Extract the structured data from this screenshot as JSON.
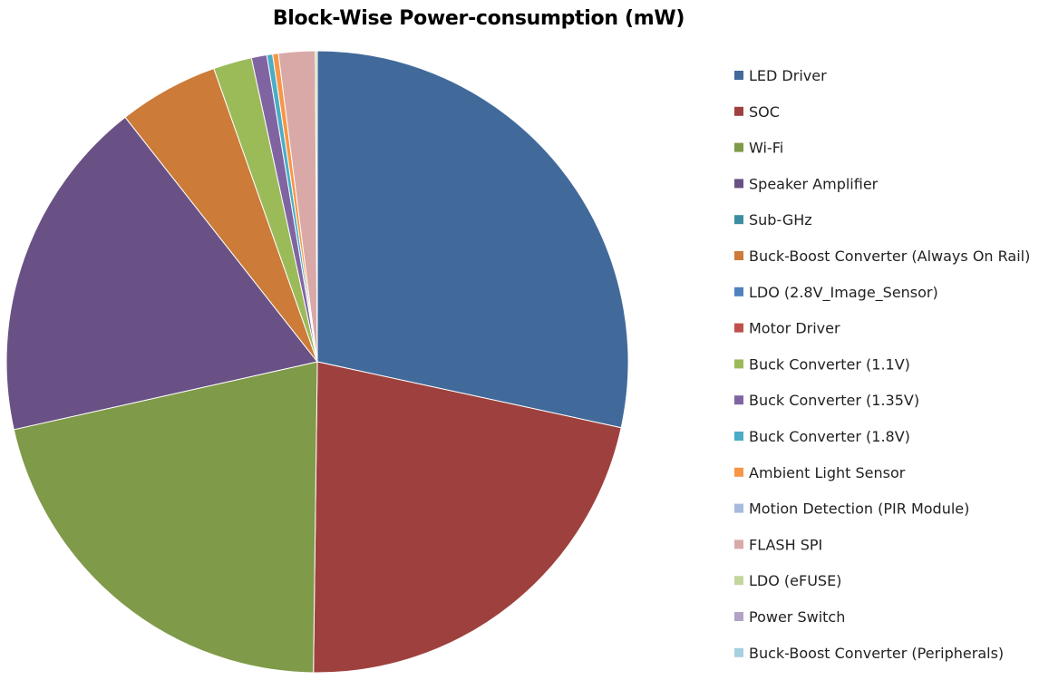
{
  "chart_data": {
    "type": "pie",
    "title": "Block-Wise Power-consumption (mW)",
    "unit_note_values_as_percent_share": true,
    "legend_position": "right",
    "categories": [
      "LED Driver",
      "SOC",
      "Wi-Fi",
      "Speaker Amplifier",
      "Sub-GHz",
      "Buck-Boost Converter (Always On Rail)",
      "LDO (2.8V_Image_Sensor)",
      "Motor Driver",
      "Buck Converter (1.1V)",
      "Buck Converter (1.35V)",
      "Buck Converter (1.8V)",
      "Ambient Light Sensor",
      "Motion Detection (PIR Module)",
      "FLASH SPI",
      "LDO (eFUSE)",
      "Power Switch",
      "Buck-Boost Converter (Peripherals)"
    ],
    "values": [
      28.4,
      21.8,
      21.3,
      17.9,
      0,
      5.2,
      0,
      0,
      2.0,
      0.8,
      0.3,
      0.3,
      0,
      1.9,
      0.1,
      0,
      0
    ],
    "colors": [
      "#416A9B",
      "#9E413E",
      "#7F9A48",
      "#695185",
      "#3C8DA3",
      "#CC7B38",
      "#4F81BD",
      "#C0504D",
      "#9BBB59",
      "#8064A2",
      "#4BACC6",
      "#F79646",
      "#A7B9DD",
      "#D9A9A8",
      "#C3D69B",
      "#B3A2C7",
      "#A5D0E0"
    ]
  }
}
